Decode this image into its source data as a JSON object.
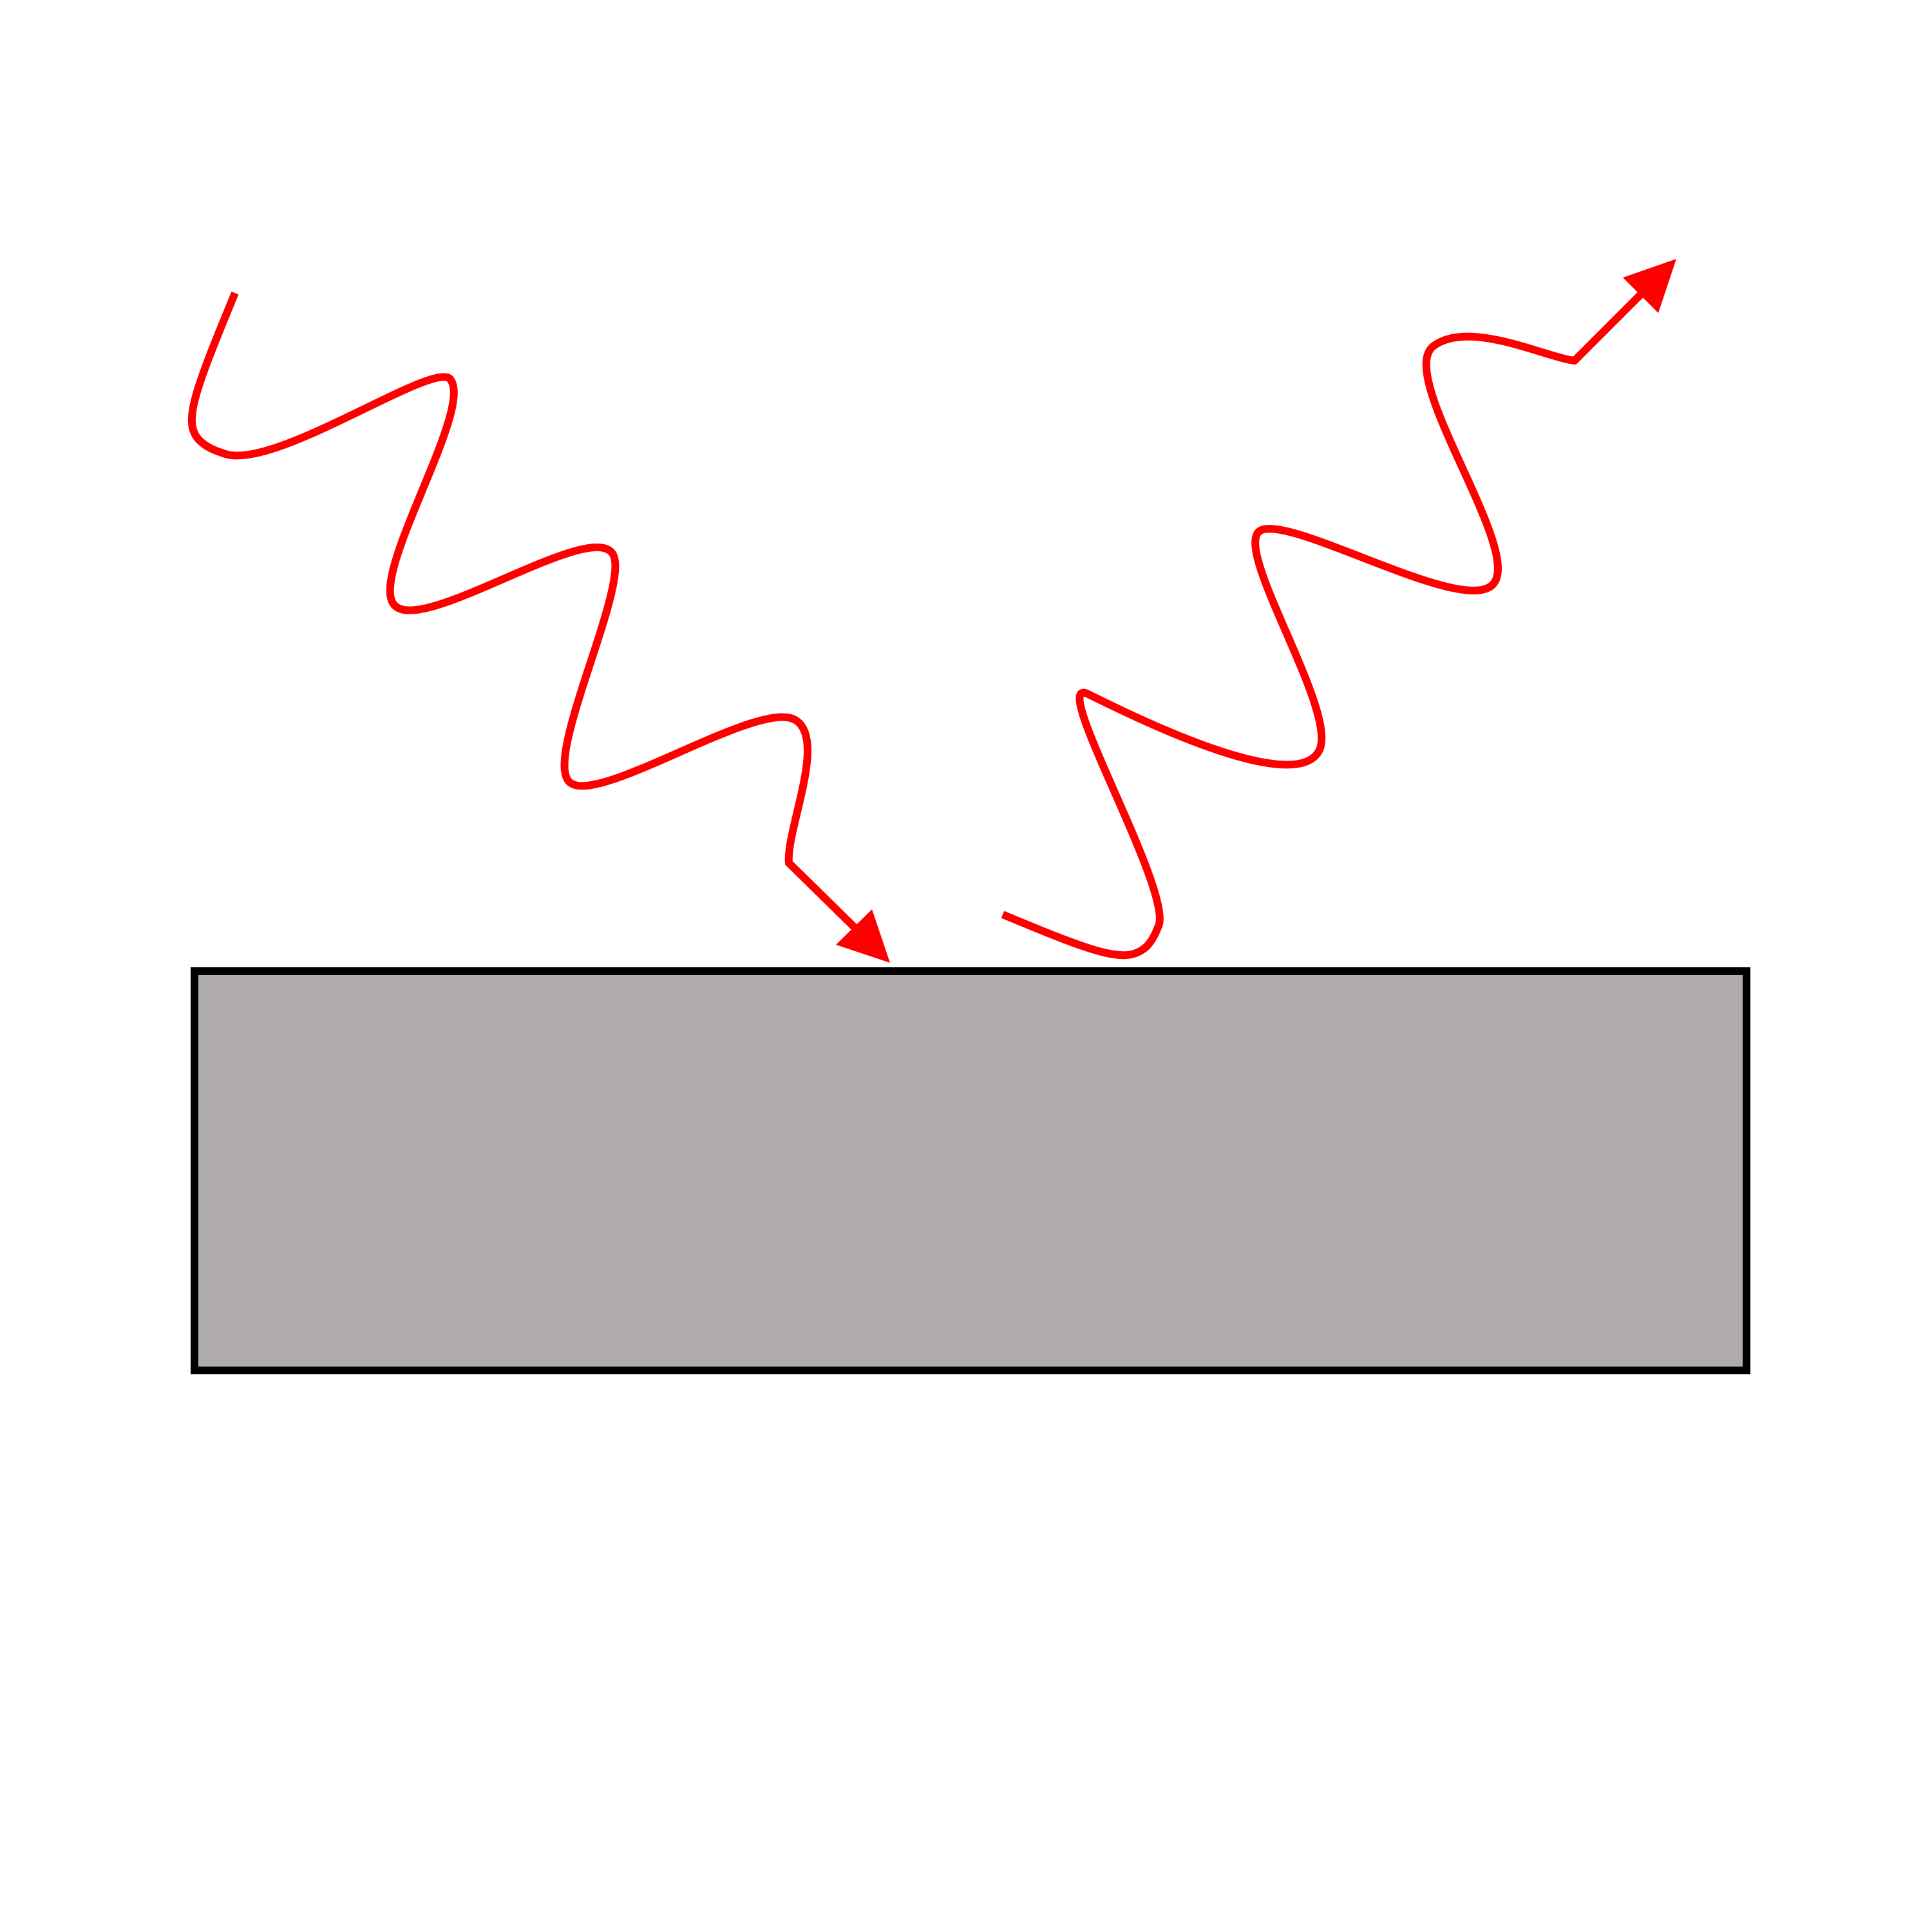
{
  "diagram": {
    "background_color": "#ffffff",
    "surface": {
      "fill_color": "#afacab",
      "stroke_color": "#000000"
    },
    "incident_wave": {
      "color": "#ff0000",
      "direction": "toward-surface"
    },
    "reflected_wave": {
      "color": "#ff0000",
      "direction": "away-from-surface"
    },
    "icons": {
      "incident_arrowhead": "arrowhead-icon",
      "reflected_arrowhead": "arrowhead-icon"
    }
  }
}
